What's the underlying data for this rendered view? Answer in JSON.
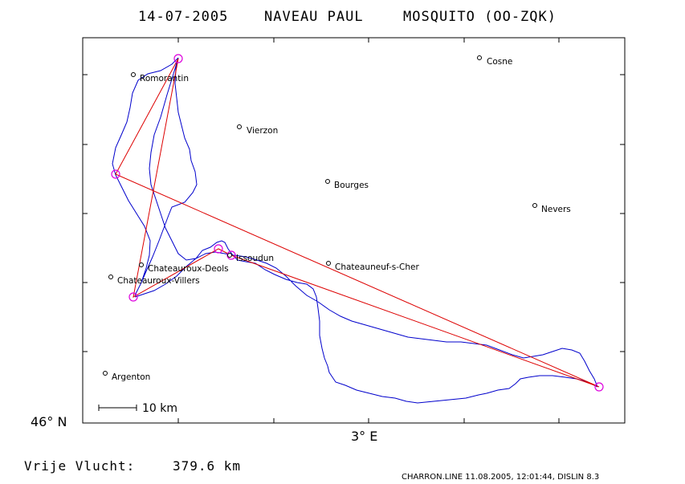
{
  "header": {
    "date": "14-07-2005",
    "pilot": "NAVEAU PAUL",
    "aircraft": "MOSQUITO (OO-ZQK)"
  },
  "axes": {
    "lat_label": "46° N",
    "lon_label": "3° E"
  },
  "scale": {
    "label": "10 km"
  },
  "cities": [
    {
      "name": "Romorantin"
    },
    {
      "name": "Cosne"
    },
    {
      "name": "Vierzon"
    },
    {
      "name": "Bourges"
    },
    {
      "name": "Nevers"
    },
    {
      "name": "Issoudun"
    },
    {
      "name": "Chateauneuf-s-Cher"
    },
    {
      "name": "Chateauroux-Deols"
    },
    {
      "name": "Chateauroux-Villers"
    },
    {
      "name": "Argenton"
    }
  ],
  "footer": {
    "free_flight_label": "Vrije Vlucht:",
    "free_flight_value": "379.6 km",
    "credit": "CHARRON.LINE 11.08.2005, 12:01:44, DISLIN 8.3"
  },
  "colors": {
    "track": "#0000cc",
    "route": "#dd0000",
    "turnpoint": "#dd00dd"
  }
}
